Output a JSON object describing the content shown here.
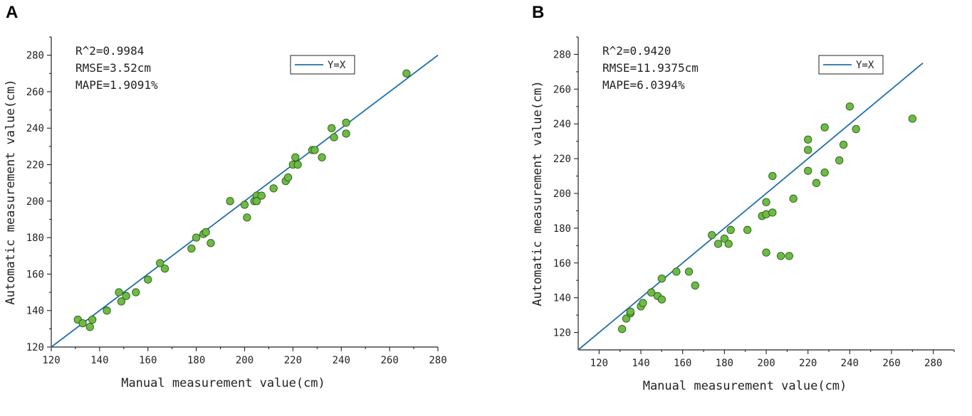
{
  "chart_data": [
    {
      "type": "scatter",
      "panel_label": "A",
      "xlabel": "Manual measurement value(cm)",
      "ylabel": "Automatic measurement value(cm)",
      "xlim": [
        120,
        280
      ],
      "ylim": [
        120,
        290
      ],
      "xticks": [
        120,
        140,
        160,
        180,
        200,
        220,
        240,
        260,
        280
      ],
      "yticks": [
        120,
        140,
        160,
        180,
        200,
        220,
        240,
        260,
        280
      ],
      "stats": [
        "R^2=0.9984",
        "RMSE=3.52cm",
        "MAPE=1.9091%"
      ],
      "legend": {
        "label": "Y=X",
        "placement": "top-right"
      },
      "reference_line": {
        "name": "Y=X",
        "from": 120,
        "to": 280
      },
      "points": [
        [
          131,
          135
        ],
        [
          133,
          133
        ],
        [
          136,
          131
        ],
        [
          137,
          135
        ],
        [
          143,
          140
        ],
        [
          148,
          150
        ],
        [
          149,
          145
        ],
        [
          151,
          148
        ],
        [
          155,
          150
        ],
        [
          160,
          157
        ],
        [
          165,
          166
        ],
        [
          167,
          163
        ],
        [
          178,
          174
        ],
        [
          180,
          180
        ],
        [
          183,
          182
        ],
        [
          184,
          183
        ],
        [
          186,
          177
        ],
        [
          194,
          200
        ],
        [
          200,
          198
        ],
        [
          201,
          191
        ],
        [
          204,
          200
        ],
        [
          205,
          203
        ],
        [
          205,
          200
        ],
        [
          207,
          203
        ],
        [
          212,
          207
        ],
        [
          217,
          211
        ],
        [
          218,
          213
        ],
        [
          220,
          220
        ],
        [
          221,
          224
        ],
        [
          222,
          220
        ],
        [
          228,
          228
        ],
        [
          229,
          228
        ],
        [
          232,
          224
        ],
        [
          236,
          240
        ],
        [
          237,
          235
        ],
        [
          242,
          243
        ],
        [
          242,
          237
        ],
        [
          267,
          270
        ]
      ]
    },
    {
      "type": "scatter",
      "panel_label": "B",
      "xlabel": "Manual measurement value(cm)",
      "ylabel": "Automatic measurement value(cm)",
      "xlim": [
        110,
        290
      ],
      "ylim": [
        110,
        290
      ],
      "xticks": [
        120,
        140,
        160,
        180,
        200,
        220,
        240,
        260,
        280
      ],
      "yticks": [
        120,
        140,
        160,
        180,
        200,
        220,
        240,
        260,
        280
      ],
      "stats": [
        "R^2=0.9420",
        "RMSE=11.9375cm",
        "MAPE=6.0394%"
      ],
      "legend": {
        "label": "Y=X",
        "placement": "top-right"
      },
      "reference_line": {
        "name": "Y=X",
        "from": 110,
        "to": 275
      },
      "points": [
        [
          131,
          122
        ],
        [
          133,
          128
        ],
        [
          135,
          131
        ],
        [
          135,
          132
        ],
        [
          140,
          135
        ],
        [
          141,
          137
        ],
        [
          145,
          143
        ],
        [
          148,
          141
        ],
        [
          150,
          139
        ],
        [
          150,
          151
        ],
        [
          157,
          155
        ],
        [
          163,
          155
        ],
        [
          166,
          147
        ],
        [
          174,
          176
        ],
        [
          177,
          171
        ],
        [
          180,
          174
        ],
        [
          182,
          171
        ],
        [
          183,
          179
        ],
        [
          191,
          179
        ],
        [
          198,
          187
        ],
        [
          200,
          195
        ],
        [
          200,
          188
        ],
        [
          200,
          166
        ],
        [
          203,
          189
        ],
        [
          203,
          210
        ],
        [
          207,
          164
        ],
        [
          211,
          164
        ],
        [
          213,
          197
        ],
        [
          220,
          231
        ],
        [
          220,
          225
        ],
        [
          220,
          213
        ],
        [
          224,
          206
        ],
        [
          228,
          238
        ],
        [
          228,
          212
        ],
        [
          235,
          219
        ],
        [
          237,
          228
        ],
        [
          240,
          250
        ],
        [
          243,
          237
        ],
        [
          270,
          243
        ]
      ]
    }
  ],
  "colors": {
    "reference_line": "#1f6fab",
    "point_fill": "#6dbb45",
    "point_stroke": "#2b5a17"
  }
}
